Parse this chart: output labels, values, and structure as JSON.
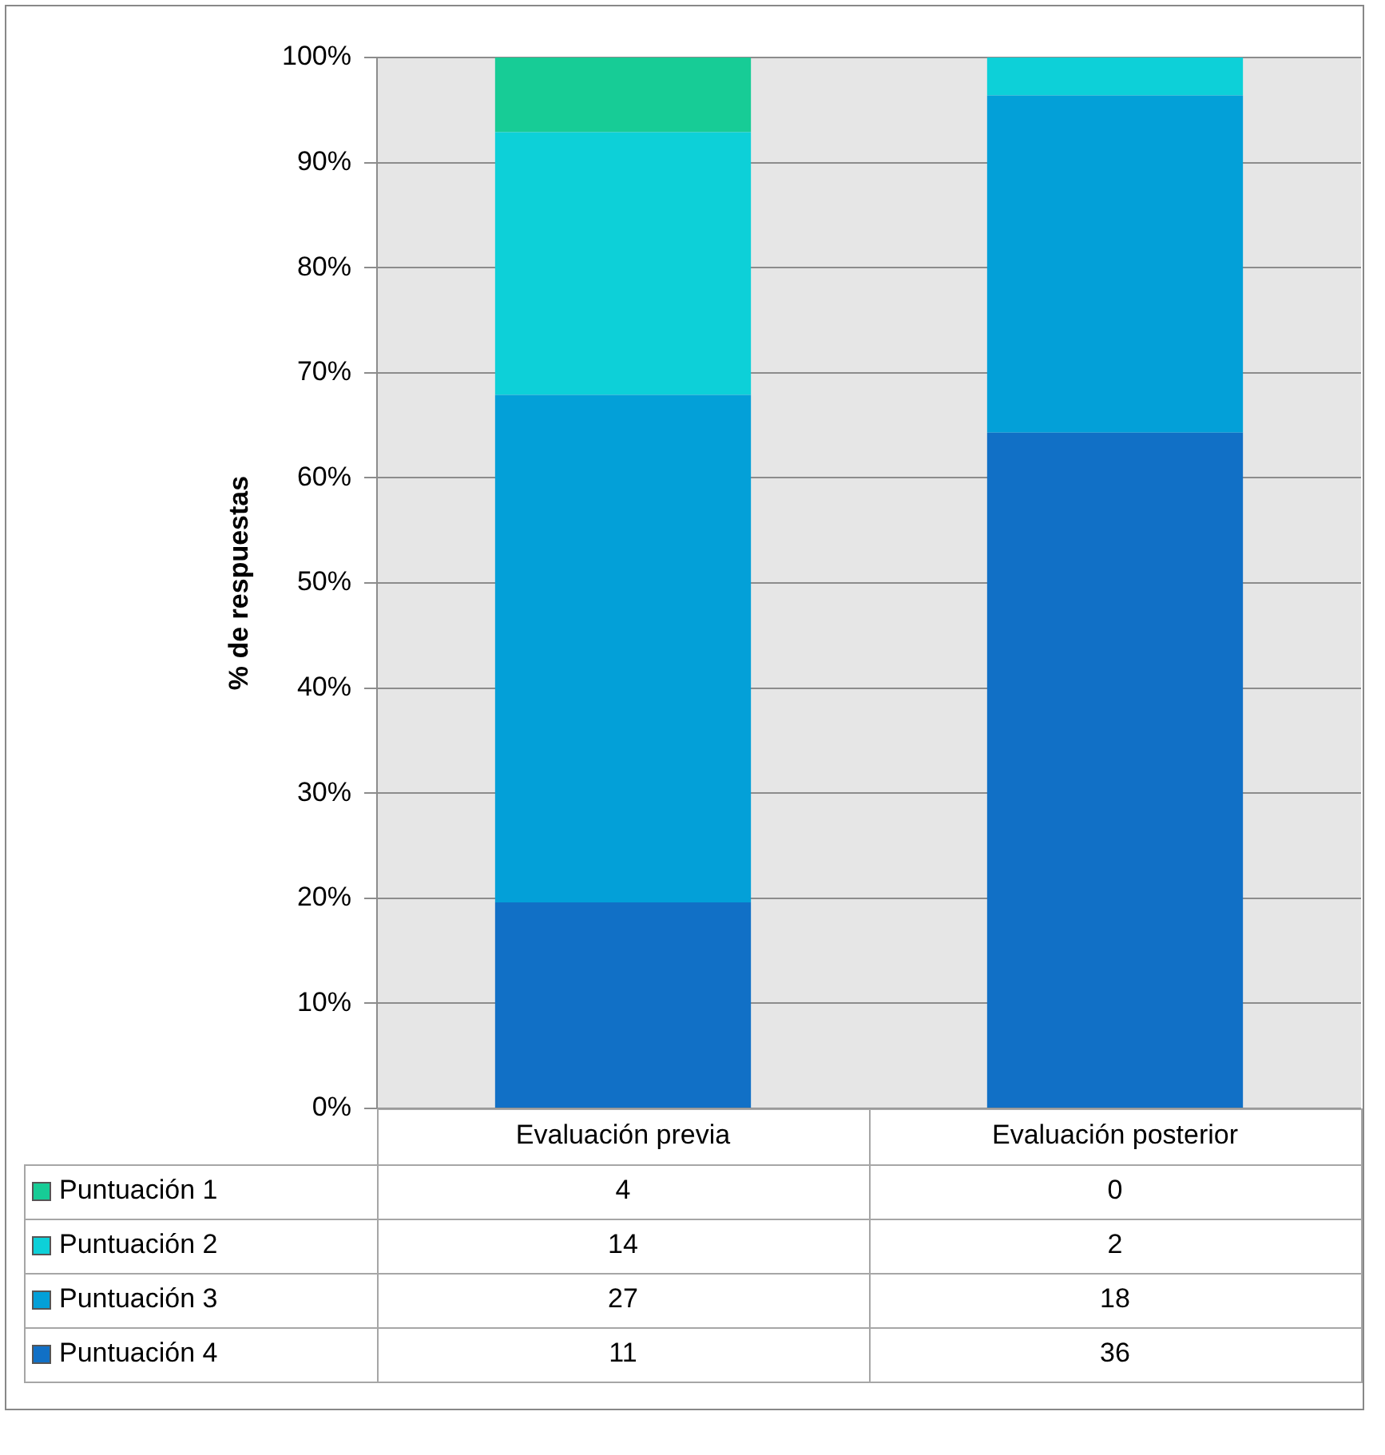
{
  "chart_data": {
    "type": "bar",
    "stacked": true,
    "ylabel": "% de respuestas",
    "categories": [
      "Evaluación previa",
      "Evaluación posterior"
    ],
    "series": [
      {
        "name": "Puntuación 4",
        "color": "#1170c6",
        "values": [
          19.6,
          64.3
        ]
      },
      {
        "name": "Puntuación 3",
        "color": "#03a0d8",
        "values": [
          48.3,
          32.1
        ]
      },
      {
        "name": "Puntuación 2",
        "color": "#0dd0d8",
        "values": [
          25.0,
          3.6
        ]
      },
      {
        "name": "Puntuación 1",
        "color": "#17cc96",
        "values": [
          7.1,
          0
        ]
      }
    ],
    "annotations": [
      "4",
      "0",
      "14",
      "2",
      "27",
      "18",
      "11",
      "36"
    ],
    "ylim": [
      0,
      100
    ],
    "yticks": [
      {
        "value": 0,
        "label": "0%"
      },
      {
        "value": 10,
        "label": "10%"
      },
      {
        "value": 20,
        "label": "20%"
      },
      {
        "value": 30,
        "label": "30%"
      },
      {
        "value": 40,
        "label": "40%"
      },
      {
        "value": 50,
        "label": "50%"
      },
      {
        "value": 60,
        "label": "60%"
      },
      {
        "value": 70,
        "label": "70%"
      },
      {
        "value": 80,
        "label": "80%"
      },
      {
        "value": 90,
        "label": "90%"
      },
      {
        "value": 100,
        "label": "100%"
      }
    ],
    "grid": "y",
    "legend": "bottom"
  }
}
